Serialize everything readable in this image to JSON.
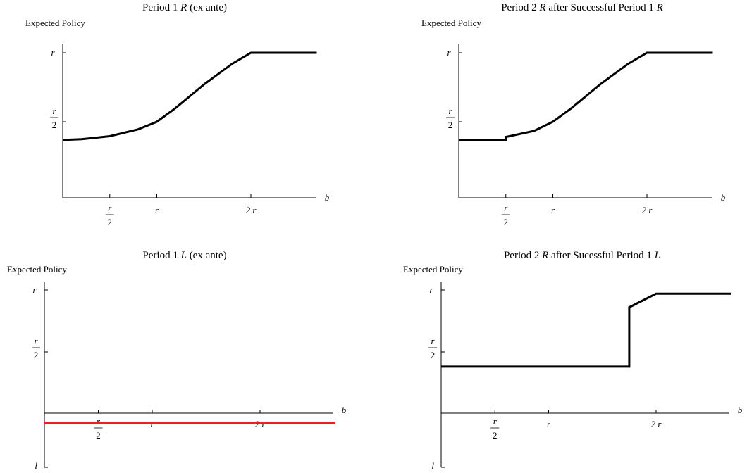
{
  "chart_data": [
    {
      "type": "line",
      "title": "Period 1 R (ex ante)",
      "title_parts": [
        "Period 1 ",
        "R",
        " (ex ante)"
      ],
      "ylabel": "Expected Policy",
      "xlabel": "b",
      "xlim": [
        0,
        2.7
      ],
      "ylim": [
        0,
        1
      ],
      "x_ticks": [
        {
          "value": 0.5,
          "num": "r",
          "den": "2"
        },
        {
          "value": 1,
          "label": "r"
        },
        {
          "value": 2,
          "label": "2 r"
        }
      ],
      "y_ticks": [
        {
          "value": 0.5,
          "num": "r",
          "den": "2"
        },
        {
          "value": 1,
          "label": "r"
        }
      ],
      "series": [
        {
          "color": "#000000",
          "points": [
            [
              0,
              0.38
            ],
            [
              0.2,
              0.385
            ],
            [
              0.5,
              0.405
            ],
            [
              0.8,
              0.45
            ],
            [
              1,
              0.5
            ],
            [
              1.2,
              0.6
            ],
            [
              1.5,
              0.77
            ],
            [
              1.8,
              0.92
            ],
            [
              2,
              1
            ],
            [
              2.7,
              1
            ]
          ]
        }
      ]
    },
    {
      "type": "line",
      "title": "Period 2 R after Successful Period 1 R",
      "title_parts": [
        "Period 2 ",
        "R",
        " after Successful Period 1 ",
        "R"
      ],
      "ylabel": "Expected Policy",
      "xlabel": "b",
      "xlim": [
        0,
        2.7
      ],
      "ylim": [
        0,
        1
      ],
      "x_ticks": [
        {
          "value": 0.5,
          "num": "r",
          "den": "2"
        },
        {
          "value": 1,
          "label": "r"
        },
        {
          "value": 2,
          "label": "2 r"
        }
      ],
      "y_ticks": [
        {
          "value": 0.5,
          "num": "r",
          "den": "2"
        },
        {
          "value": 1,
          "label": "r"
        }
      ],
      "series": [
        {
          "color": "#000000",
          "points": [
            [
              0,
              0.38
            ],
            [
              0.5,
              0.38
            ],
            [
              0.5,
              0.4
            ],
            [
              0.8,
              0.44
            ],
            [
              1,
              0.5
            ],
            [
              1.2,
              0.6
            ],
            [
              1.5,
              0.77
            ],
            [
              1.8,
              0.92
            ],
            [
              2,
              1
            ],
            [
              2.7,
              1
            ]
          ]
        }
      ]
    },
    {
      "type": "line",
      "title": "Period 1 L (ex ante)",
      "title_parts": [
        "Period 1 ",
        "L",
        " (ex ante)"
      ],
      "ylabel": "Expected Policy",
      "xlabel": "b",
      "xlim": [
        0,
        2.7
      ],
      "ylim": [
        -1,
        1
      ],
      "x_ticks": [
        {
          "value": 0.5,
          "num": "r",
          "den": "2"
        },
        {
          "value": 1,
          "label": "r"
        },
        {
          "value": 2,
          "label": "2 r"
        }
      ],
      "y_ticks": [
        {
          "value": 0.5,
          "num": "r",
          "den": "2"
        },
        {
          "value": 1,
          "label": "r"
        },
        {
          "value": -1,
          "label": "l"
        }
      ],
      "series": [
        {
          "color": "#e8202a",
          "points": [
            [
              0,
              -0.18
            ],
            [
              2.7,
              -0.18
            ]
          ]
        }
      ]
    },
    {
      "type": "line",
      "title": "Period 2 R after Sucessful Period 1 L",
      "title_parts": [
        "Period 2 ",
        "R",
        " after Sucessful Period 1 ",
        "L"
      ],
      "ylabel": "Expected Policy",
      "xlabel": "b",
      "xlim": [
        0,
        2.7
      ],
      "ylim": [
        -1,
        1
      ],
      "x_ticks": [
        {
          "value": 0.5,
          "num": "r",
          "den": "2"
        },
        {
          "value": 1,
          "label": "r"
        },
        {
          "value": 2,
          "label": "2 r"
        }
      ],
      "y_ticks": [
        {
          "value": 0.5,
          "num": "r",
          "den": "2"
        },
        {
          "value": 1,
          "label": "r"
        },
        {
          "value": -1,
          "label": "l"
        }
      ],
      "series": [
        {
          "color": "#000000",
          "points": [
            [
              0,
              0.38
            ],
            [
              1.75,
              0.38
            ],
            [
              1.75,
              0.86
            ],
            [
              2,
              0.97
            ],
            [
              2.7,
              0.97
            ]
          ]
        }
      ]
    }
  ]
}
